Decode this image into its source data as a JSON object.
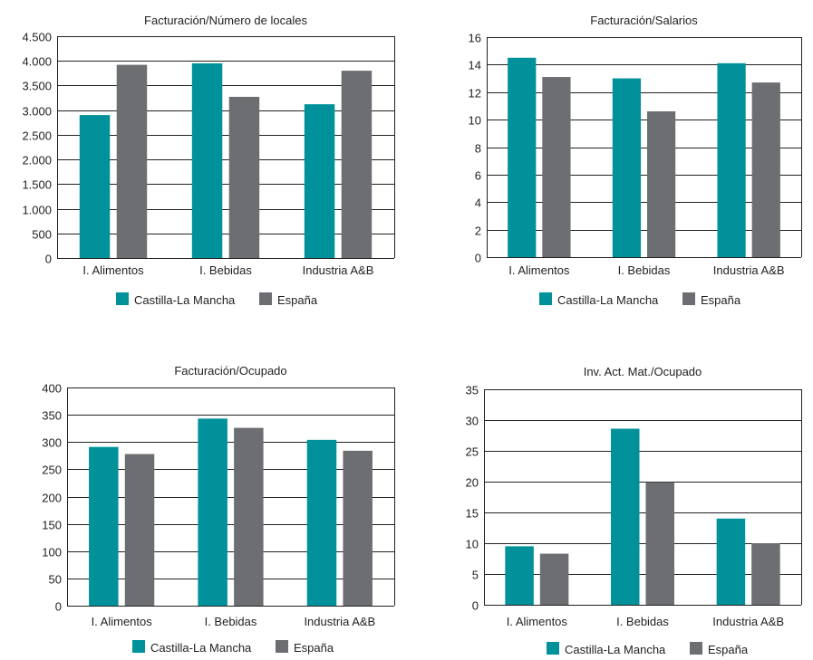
{
  "colors": {
    "castilla": "#00919a",
    "espana": "#6d6e71"
  },
  "chart_data": [
    {
      "type": "bar",
      "title": "Facturación/Número de locales",
      "categories": [
        "I. Alimentos",
        "I. Bebidas",
        "Industria A&B"
      ],
      "series": [
        {
          "name": "Castilla-La Mancha",
          "values": [
            2900,
            3950,
            3120
          ]
        },
        {
          "name": "España",
          "values": [
            3920,
            3270,
            3800
          ]
        }
      ],
      "ylim": [
        0,
        4500
      ],
      "yticks": [
        0,
        500,
        1000,
        1500,
        2000,
        2500,
        3000,
        3500,
        4000,
        4500
      ],
      "ytick_labels": [
        "0",
        "500",
        "1.000",
        "1.500",
        "2.000",
        "2.500",
        "3.000",
        "3.500",
        "4.000",
        "4.500"
      ],
      "grid": true,
      "legend": "bottom"
    },
    {
      "type": "bar",
      "title": "Facturación/Salarios",
      "categories": [
        "I. Alimentos",
        "I. Bebidas",
        "Industria A&B"
      ],
      "series": [
        {
          "name": "Castilla-La Mancha",
          "values": [
            14.5,
            13.0,
            14.1
          ]
        },
        {
          "name": "España",
          "values": [
            13.1,
            10.6,
            12.7
          ]
        }
      ],
      "ylim": [
        0,
        16
      ],
      "yticks": [
        0,
        2,
        4,
        6,
        8,
        10,
        12,
        14,
        16
      ],
      "ytick_labels": [
        "0",
        "2",
        "4",
        "6",
        "8",
        "10",
        "12",
        "14",
        "16"
      ],
      "grid": true,
      "legend": "bottom"
    },
    {
      "type": "bar",
      "title": "Facturación/Ocupado",
      "categories": [
        "I. Alimentos",
        "I. Bebidas",
        "Industria A&B"
      ],
      "series": [
        {
          "name": "Castilla-La Mancha",
          "values": [
            291,
            343,
            304
          ]
        },
        {
          "name": "España",
          "values": [
            278,
            326,
            284
          ]
        }
      ],
      "ylim": [
        0,
        400
      ],
      "yticks": [
        0,
        50,
        100,
        150,
        200,
        250,
        300,
        350,
        400
      ],
      "ytick_labels": [
        "0",
        "50",
        "100",
        "150",
        "200",
        "250",
        "300",
        "350",
        "400"
      ],
      "grid": true,
      "legend": "bottom"
    },
    {
      "type": "bar",
      "title": "Inv. Act. Mat./Ocupado",
      "categories": [
        "I. Alimentos",
        "I. Bebidas",
        "Industria A&B"
      ],
      "series": [
        {
          "name": "Castilla-La Mancha",
          "values": [
            9.5,
            28.6,
            14.0
          ]
        },
        {
          "name": "España",
          "values": [
            8.3,
            19.9,
            10.0
          ]
        }
      ],
      "ylim": [
        0,
        35
      ],
      "yticks": [
        0,
        5,
        10,
        15,
        20,
        25,
        30,
        35
      ],
      "ytick_labels": [
        "0",
        "5",
        "10",
        "15",
        "20",
        "25",
        "30",
        "35"
      ],
      "grid": true,
      "legend": "bottom"
    }
  ]
}
